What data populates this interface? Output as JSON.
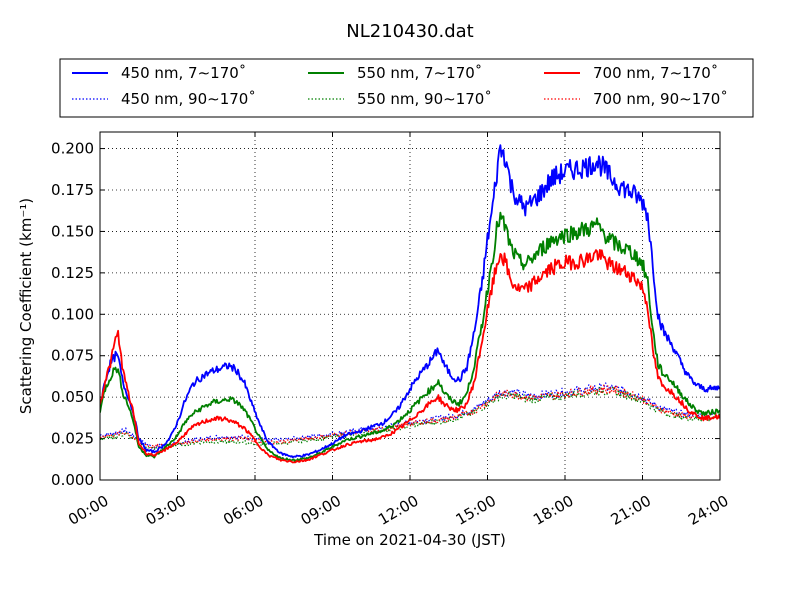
{
  "chart_data": {
    "type": "line",
    "title": "NL210430.dat",
    "xlabel": "Time on 2021-04-30 (JST)",
    "ylabel": "Scattering Coefficient (km⁻¹)",
    "x_unit": "hours",
    "xlim": [
      0,
      24
    ],
    "ylim": [
      0,
      0.21
    ],
    "grid": true,
    "legend_position": "top",
    "x_ticks": [
      {
        "value": 0,
        "label": "00:00"
      },
      {
        "value": 3,
        "label": "03:00"
      },
      {
        "value": 6,
        "label": "06:00"
      },
      {
        "value": 9,
        "label": "09:00"
      },
      {
        "value": 12,
        "label": "12:00"
      },
      {
        "value": 15,
        "label": "15:00"
      },
      {
        "value": 18,
        "label": "18:00"
      },
      {
        "value": 21,
        "label": "21:00"
      },
      {
        "value": 24,
        "label": "24:00"
      }
    ],
    "y_ticks": [
      {
        "value": 0.0,
        "label": "0.000"
      },
      {
        "value": 0.025,
        "label": "0.025"
      },
      {
        "value": 0.05,
        "label": "0.050"
      },
      {
        "value": 0.075,
        "label": "0.075"
      },
      {
        "value": 0.1,
        "label": "0.100"
      },
      {
        "value": 0.125,
        "label": "0.125"
      },
      {
        "value": 0.15,
        "label": "0.150"
      },
      {
        "value": 0.175,
        "label": "0.175"
      },
      {
        "value": 0.2,
        "label": "0.200"
      }
    ],
    "series": [
      {
        "name": "450 nm, 7∼170˚",
        "color": "#0000ff",
        "style": "solid",
        "x": [
          0,
          0.2,
          0.4,
          0.6,
          0.7,
          0.9,
          1.1,
          1.3,
          1.5,
          1.8,
          2.1,
          2.4,
          2.7,
          3.0,
          3.3,
          3.6,
          4.0,
          4.4,
          4.8,
          5.0,
          5.3,
          5.6,
          5.9,
          6.2,
          6.5,
          7.0,
          7.5,
          8.0,
          8.5,
          9.0,
          9.5,
          10.0,
          10.5,
          11.0,
          11.5,
          12.0,
          12.3,
          12.6,
          12.9,
          13.1,
          13.3,
          13.6,
          13.9,
          14.2,
          14.5,
          14.8,
          15.0,
          15.2,
          15.4,
          15.5,
          15.7,
          15.9,
          16.2,
          16.5,
          17.0,
          17.5,
          18.0,
          18.5,
          19.0,
          19.2,
          19.5,
          19.8,
          20.1,
          20.4,
          20.7,
          21.0,
          21.2,
          21.4,
          21.6,
          21.8,
          22.0,
          22.2,
          22.5,
          22.8,
          23.1,
          23.4,
          23.7,
          24.0
        ],
        "y": [
          0.045,
          0.06,
          0.07,
          0.075,
          0.074,
          0.058,
          0.05,
          0.04,
          0.025,
          0.018,
          0.017,
          0.02,
          0.025,
          0.035,
          0.048,
          0.058,
          0.063,
          0.066,
          0.068,
          0.069,
          0.066,
          0.058,
          0.045,
          0.033,
          0.023,
          0.016,
          0.014,
          0.015,
          0.018,
          0.022,
          0.027,
          0.029,
          0.032,
          0.035,
          0.042,
          0.055,
          0.062,
          0.068,
          0.074,
          0.079,
          0.07,
          0.063,
          0.06,
          0.068,
          0.09,
          0.12,
          0.145,
          0.165,
          0.19,
          0.2,
          0.195,
          0.178,
          0.168,
          0.164,
          0.172,
          0.182,
          0.186,
          0.188,
          0.19,
          0.193,
          0.188,
          0.182,
          0.178,
          0.175,
          0.172,
          0.168,
          0.16,
          0.13,
          0.1,
          0.09,
          0.085,
          0.08,
          0.07,
          0.062,
          0.057,
          0.055,
          0.055,
          0.056
        ]
      },
      {
        "name": "550 nm, 7∼170˚",
        "color": "#008000",
        "style": "solid",
        "x": [
          0,
          0.2,
          0.4,
          0.6,
          0.7,
          0.9,
          1.1,
          1.3,
          1.5,
          1.8,
          2.1,
          2.4,
          2.7,
          3.0,
          3.3,
          3.6,
          4.0,
          4.4,
          4.8,
          5.0,
          5.3,
          5.6,
          5.9,
          6.2,
          6.5,
          7.0,
          7.5,
          8.0,
          8.5,
          9.0,
          9.5,
          10.0,
          10.5,
          11.0,
          11.5,
          12.0,
          12.3,
          12.6,
          12.9,
          13.1,
          13.3,
          13.6,
          13.9,
          14.2,
          14.5,
          14.8,
          15.0,
          15.2,
          15.4,
          15.5,
          15.7,
          15.9,
          16.2,
          16.5,
          17.0,
          17.5,
          18.0,
          18.5,
          19.0,
          19.2,
          19.5,
          19.8,
          20.1,
          20.4,
          20.7,
          21.0,
          21.2,
          21.4,
          21.6,
          21.8,
          22.0,
          22.2,
          22.5,
          22.8,
          23.1,
          23.4,
          23.7,
          24.0
        ],
        "y": [
          0.042,
          0.055,
          0.062,
          0.068,
          0.066,
          0.052,
          0.045,
          0.035,
          0.02,
          0.015,
          0.014,
          0.018,
          0.022,
          0.027,
          0.035,
          0.04,
          0.044,
          0.047,
          0.048,
          0.049,
          0.047,
          0.042,
          0.034,
          0.025,
          0.018,
          0.013,
          0.012,
          0.013,
          0.016,
          0.02,
          0.024,
          0.026,
          0.028,
          0.03,
          0.035,
          0.042,
          0.047,
          0.052,
          0.056,
          0.06,
          0.053,
          0.048,
          0.046,
          0.052,
          0.07,
          0.095,
          0.115,
          0.135,
          0.155,
          0.158,
          0.152,
          0.14,
          0.132,
          0.13,
          0.138,
          0.145,
          0.148,
          0.15,
          0.152,
          0.154,
          0.149,
          0.144,
          0.141,
          0.139,
          0.136,
          0.13,
          0.12,
          0.09,
          0.07,
          0.064,
          0.062,
          0.058,
          0.052,
          0.046,
          0.042,
          0.04,
          0.041,
          0.042
        ]
      },
      {
        "name": "700 nm, 7∼170˚",
        "color": "#ff0000",
        "style": "solid",
        "x": [
          0,
          0.2,
          0.4,
          0.6,
          0.7,
          0.9,
          1.1,
          1.3,
          1.5,
          1.8,
          2.1,
          2.4,
          2.7,
          3.0,
          3.3,
          3.6,
          4.0,
          4.4,
          4.8,
          5.0,
          5.3,
          5.6,
          5.9,
          6.2,
          6.5,
          7.0,
          7.5,
          8.0,
          8.5,
          9.0,
          9.5,
          10.0,
          10.5,
          11.0,
          11.5,
          12.0,
          12.3,
          12.6,
          12.9,
          13.1,
          13.3,
          13.6,
          13.9,
          14.2,
          14.5,
          14.8,
          15.0,
          15.2,
          15.4,
          15.5,
          15.7,
          15.9,
          16.2,
          16.5,
          17.0,
          17.5,
          18.0,
          18.5,
          19.0,
          19.2,
          19.5,
          19.8,
          20.1,
          20.4,
          20.7,
          21.0,
          21.2,
          21.4,
          21.6,
          21.8,
          22.0,
          22.2,
          22.5,
          22.8,
          23.1,
          23.4,
          23.7,
          24.0
        ],
        "y": [
          0.045,
          0.06,
          0.07,
          0.085,
          0.088,
          0.065,
          0.052,
          0.04,
          0.022,
          0.016,
          0.015,
          0.017,
          0.02,
          0.023,
          0.028,
          0.032,
          0.035,
          0.037,
          0.037,
          0.036,
          0.034,
          0.031,
          0.026,
          0.02,
          0.015,
          0.012,
          0.011,
          0.012,
          0.015,
          0.018,
          0.021,
          0.023,
          0.024,
          0.026,
          0.03,
          0.036,
          0.04,
          0.044,
          0.048,
          0.05,
          0.046,
          0.043,
          0.042,
          0.046,
          0.06,
          0.085,
          0.102,
          0.118,
          0.132,
          0.137,
          0.131,
          0.12,
          0.115,
          0.115,
          0.122,
          0.128,
          0.131,
          0.132,
          0.134,
          0.137,
          0.133,
          0.129,
          0.127,
          0.125,
          0.122,
          0.116,
          0.105,
          0.078,
          0.062,
          0.056,
          0.055,
          0.052,
          0.047,
          0.042,
          0.039,
          0.037,
          0.038,
          0.038
        ]
      },
      {
        "name": "450 nm, 90∼170˚",
        "color": "#0000ff",
        "style": "dotted",
        "x": [
          0,
          0.5,
          1.0,
          1.5,
          2.0,
          2.5,
          3.0,
          3.5,
          4.0,
          4.5,
          5.0,
          5.5,
          6.0,
          6.5,
          7.0,
          7.5,
          8.0,
          8.5,
          9.0,
          9.5,
          10.0,
          10.5,
          11.0,
          11.5,
          12.0,
          12.5,
          13.0,
          13.5,
          14.0,
          14.5,
          15.0,
          15.5,
          16.0,
          16.5,
          17.0,
          17.5,
          18.0,
          18.5,
          19.0,
          19.5,
          20.0,
          20.5,
          21.0,
          21.5,
          22.0,
          22.5,
          23.0,
          23.5,
          24.0
        ],
        "y": [
          0.027,
          0.028,
          0.03,
          0.024,
          0.02,
          0.021,
          0.022,
          0.024,
          0.025,
          0.026,
          0.026,
          0.026,
          0.025,
          0.024,
          0.024,
          0.025,
          0.026,
          0.027,
          0.028,
          0.029,
          0.03,
          0.031,
          0.032,
          0.033,
          0.035,
          0.036,
          0.037,
          0.038,
          0.04,
          0.043,
          0.048,
          0.053,
          0.053,
          0.051,
          0.051,
          0.052,
          0.053,
          0.054,
          0.055,
          0.056,
          0.055,
          0.053,
          0.05,
          0.045,
          0.042,
          0.04,
          0.039,
          0.039,
          0.04
        ]
      },
      {
        "name": "550 nm, 90∼170˚",
        "color": "#008000",
        "style": "dotted",
        "x": [
          0,
          0.5,
          1.0,
          1.5,
          2.0,
          2.5,
          3.0,
          3.5,
          4.0,
          4.5,
          5.0,
          5.5,
          6.0,
          6.5,
          7.0,
          7.5,
          8.0,
          8.5,
          9.0,
          9.5,
          10.0,
          10.5,
          11.0,
          11.5,
          12.0,
          12.5,
          13.0,
          13.5,
          14.0,
          14.5,
          15.0,
          15.5,
          16.0,
          16.5,
          17.0,
          17.5,
          18.0,
          18.5,
          19.0,
          19.5,
          20.0,
          20.5,
          21.0,
          21.5,
          22.0,
          22.5,
          23.0,
          23.5,
          24.0
        ],
        "y": [
          0.025,
          0.026,
          0.028,
          0.022,
          0.019,
          0.02,
          0.021,
          0.022,
          0.023,
          0.023,
          0.023,
          0.023,
          0.022,
          0.022,
          0.022,
          0.023,
          0.024,
          0.025,
          0.026,
          0.027,
          0.028,
          0.029,
          0.03,
          0.031,
          0.033,
          0.034,
          0.035,
          0.036,
          0.038,
          0.041,
          0.046,
          0.051,
          0.051,
          0.049,
          0.049,
          0.05,
          0.051,
          0.052,
          0.053,
          0.054,
          0.053,
          0.051,
          0.048,
          0.043,
          0.04,
          0.038,
          0.037,
          0.037,
          0.038
        ]
      },
      {
        "name": "700 nm, 90∼170˚",
        "color": "#ff0000",
        "style": "dotted",
        "x": [
          0,
          0.5,
          1.0,
          1.5,
          2.0,
          2.5,
          3.0,
          3.5,
          4.0,
          4.5,
          5.0,
          5.5,
          6.0,
          6.5,
          7.0,
          7.5,
          8.0,
          8.5,
          9.0,
          9.5,
          10.0,
          10.5,
          11.0,
          11.5,
          12.0,
          12.5,
          13.0,
          13.5,
          14.0,
          14.5,
          15.0,
          15.5,
          16.0,
          16.5,
          17.0,
          17.5,
          18.0,
          18.5,
          19.0,
          19.5,
          20.0,
          20.5,
          21.0,
          21.5,
          22.0,
          22.5,
          23.0,
          23.5,
          24.0
        ],
        "y": [
          0.026,
          0.027,
          0.029,
          0.023,
          0.02,
          0.021,
          0.022,
          0.023,
          0.024,
          0.025,
          0.025,
          0.025,
          0.024,
          0.023,
          0.023,
          0.024,
          0.025,
          0.026,
          0.027,
          0.028,
          0.029,
          0.03,
          0.031,
          0.032,
          0.034,
          0.035,
          0.036,
          0.037,
          0.039,
          0.042,
          0.047,
          0.052,
          0.052,
          0.05,
          0.05,
          0.051,
          0.052,
          0.053,
          0.054,
          0.055,
          0.054,
          0.052,
          0.049,
          0.044,
          0.041,
          0.039,
          0.038,
          0.038,
          0.039
        ]
      }
    ]
  }
}
